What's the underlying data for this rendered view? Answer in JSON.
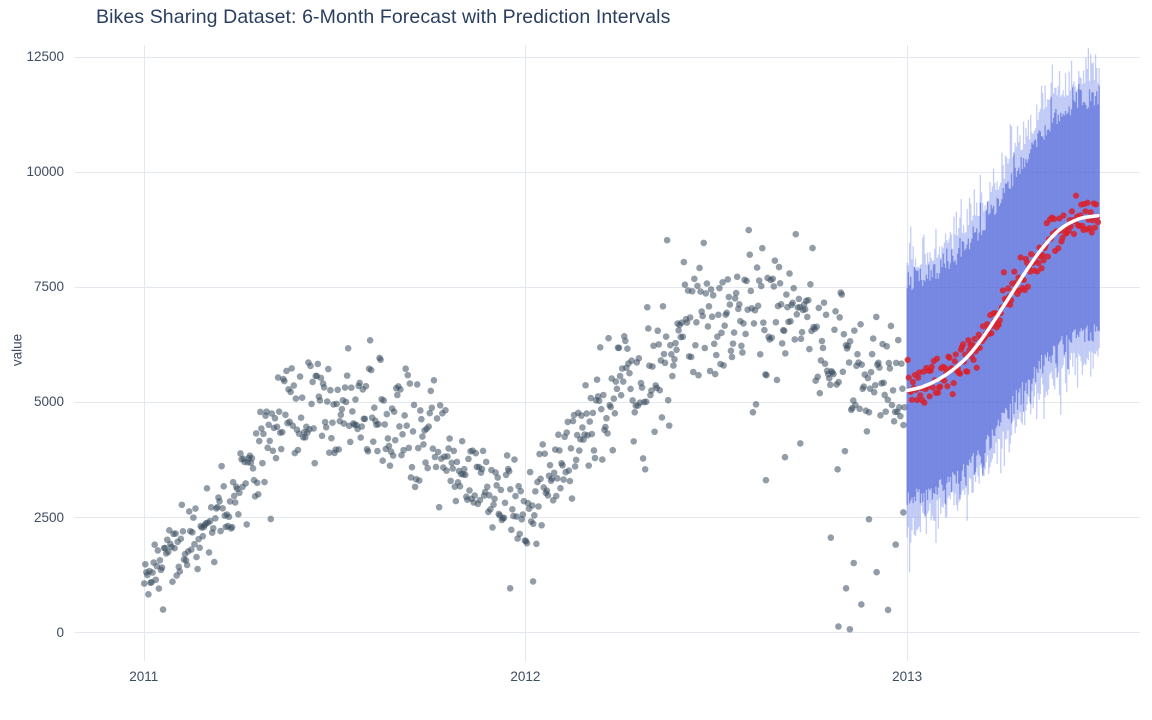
{
  "chart_data": {
    "type": "scatter",
    "title": "Bikes Sharing Dataset: 6-Month Forecast with Prediction Intervals",
    "xlabel": "",
    "ylabel": "value",
    "grid": true,
    "legend": "none",
    "x_range": [
      2010.82,
      2013.61
    ],
    "y_range": [
      -630,
      12760
    ],
    "x_ticks": [
      {
        "value": 2011,
        "label": "2011"
      },
      {
        "value": 2012,
        "label": "2012"
      },
      {
        "value": 2013,
        "label": "2013"
      }
    ],
    "y_ticks": [
      {
        "value": 0,
        "label": "0"
      },
      {
        "value": 2500,
        "label": "2500"
      },
      {
        "value": 5000,
        "label": "5000"
      },
      {
        "value": 7500,
        "label": "7500"
      },
      {
        "value": 10000,
        "label": "10000"
      },
      {
        "value": 12500,
        "label": "12500"
      }
    ],
    "series": [
      {
        "name": "historical-observations",
        "kind": "noisy-scatter",
        "color": "#384c5e",
        "opacity": 0.55,
        "marker_radius": 3.3,
        "seed": 42,
        "x_start": 2011.0,
        "x_end": 2012.995,
        "points_per_year": 365,
        "noise_base": 180,
        "noise_scale": 0.1,
        "trend": [
          [
            2011.0,
            1350
          ],
          [
            2011.08,
            1750
          ],
          [
            2011.17,
            2300
          ],
          [
            2011.25,
            3200
          ],
          [
            2011.33,
            4300
          ],
          [
            2011.42,
            4850
          ],
          [
            2011.5,
            4850
          ],
          [
            2011.58,
            4800
          ],
          [
            2011.67,
            4550
          ],
          [
            2011.75,
            4150
          ],
          [
            2011.83,
            3600
          ],
          [
            2011.92,
            2950
          ],
          [
            2012.0,
            2650
          ],
          [
            2012.08,
            3300
          ],
          [
            2012.17,
            4600
          ],
          [
            2012.25,
            5400
          ],
          [
            2012.33,
            6100
          ],
          [
            2012.42,
            6700
          ],
          [
            2012.5,
            6800
          ],
          [
            2012.58,
            7000
          ],
          [
            2012.67,
            7250
          ],
          [
            2012.75,
            6900
          ],
          [
            2012.83,
            5800
          ],
          [
            2012.9,
            5500
          ],
          [
            2012.97,
            5550
          ]
        ],
        "outliers": [
          [
            2011.96,
            950
          ],
          [
            2012.02,
            1100
          ],
          [
            2012.63,
            3300
          ],
          [
            2012.68,
            3800
          ],
          [
            2012.72,
            4100
          ],
          [
            2012.8,
            2050
          ],
          [
            2012.82,
            120
          ],
          [
            2012.84,
            950
          ],
          [
            2012.85,
            60
          ],
          [
            2012.86,
            1500
          ],
          [
            2012.88,
            600
          ],
          [
            2012.9,
            2450
          ],
          [
            2012.92,
            1300
          ],
          [
            2012.95,
            480
          ],
          [
            2012.97,
            1900
          ],
          [
            2012.99,
            2600
          ]
        ]
      },
      {
        "name": "forecast-actuals",
        "kind": "noisy-scatter",
        "color": "#d9212c",
        "opacity": 0.85,
        "marker_radius": 3.1,
        "seed": 7,
        "x_start": 2013.0,
        "x_end": 2013.5,
        "points_per_year": 365,
        "noise_base": 240,
        "noise_scale": 0,
        "trend": [
          [
            2013.0,
            5250
          ],
          [
            2013.04,
            5330
          ],
          [
            2013.08,
            5480
          ],
          [
            2013.12,
            5700
          ],
          [
            2013.16,
            6000
          ],
          [
            2013.2,
            6420
          ],
          [
            2013.25,
            7050
          ],
          [
            2013.3,
            7700
          ],
          [
            2013.35,
            8300
          ],
          [
            2013.4,
            8750
          ],
          [
            2013.45,
            8980
          ],
          [
            2013.5,
            9050
          ]
        ],
        "outliers": []
      }
    ],
    "forecast_line": {
      "name": "forecast-mean",
      "color": "#ffffff",
      "width": 3.5,
      "points": [
        [
          2013.0,
          5250
        ],
        [
          2013.04,
          5330
        ],
        [
          2013.08,
          5480
        ],
        [
          2013.12,
          5700
        ],
        [
          2013.16,
          6000
        ],
        [
          2013.2,
          6420
        ],
        [
          2013.25,
          7050
        ],
        [
          2013.3,
          7700
        ],
        [
          2013.35,
          8300
        ],
        [
          2013.4,
          8750
        ],
        [
          2013.45,
          8980
        ],
        [
          2013.5,
          9050
        ]
      ]
    },
    "prediction_bands": {
      "x_start": 2013.0,
      "x_end": 2013.505,
      "seed": 99,
      "outer": {
        "name": "outer-prediction-interval",
        "color": "#7c90eb",
        "opacity": 0.45,
        "halfwidth": [
          [
            2013.0,
            2550
          ],
          [
            2013.5,
            2850
          ]
        ],
        "edge_jitter": 420
      },
      "inner": {
        "name": "inner-prediction-interval",
        "color": "#485ed7",
        "opacity": 0.6,
        "halfwidth": [
          [
            2013.0,
            2150
          ],
          [
            2013.5,
            2350
          ]
        ],
        "edge_jitter": 300
      }
    },
    "grid_color": "#e3e8ee"
  }
}
